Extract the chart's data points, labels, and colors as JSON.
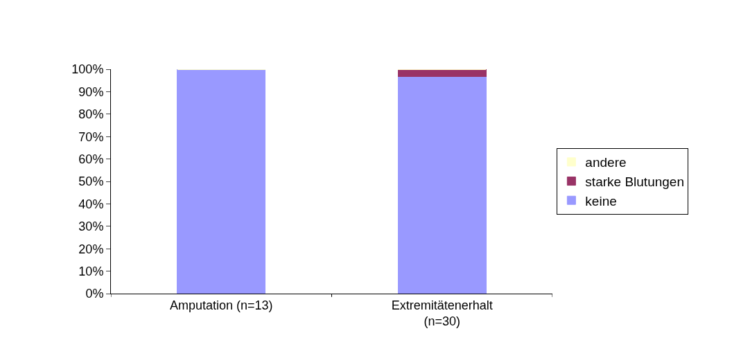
{
  "chart_data": {
    "type": "bar",
    "stacked": true,
    "categories": [
      "Amputation (n=13)",
      "Extremitätenerhalt (n=30)"
    ],
    "series": [
      {
        "name": "keine",
        "color": "#9999ff",
        "values": [
          100,
          96.7
        ]
      },
      {
        "name": "starke Blutungen",
        "color": "#993366",
        "values": [
          0,
          3.3
        ]
      },
      {
        "name": "andere",
        "color": "#ffffcc",
        "values": [
          0,
          0
        ]
      }
    ],
    "ylim": [
      0,
      100
    ],
    "yticks": [
      {
        "value": 0,
        "label": "0%"
      },
      {
        "value": 10,
        "label": "10%"
      },
      {
        "value": 20,
        "label": "20%"
      },
      {
        "value": 30,
        "label": "30%"
      },
      {
        "value": 40,
        "label": "40%"
      },
      {
        "value": 50,
        "label": "50%"
      },
      {
        "value": 60,
        "label": "60%"
      },
      {
        "value": 70,
        "label": "70%"
      },
      {
        "value": 80,
        "label": "80%"
      },
      {
        "value": 90,
        "label": "90%"
      },
      {
        "value": 100,
        "label": "100%"
      }
    ],
    "legend": "right"
  }
}
